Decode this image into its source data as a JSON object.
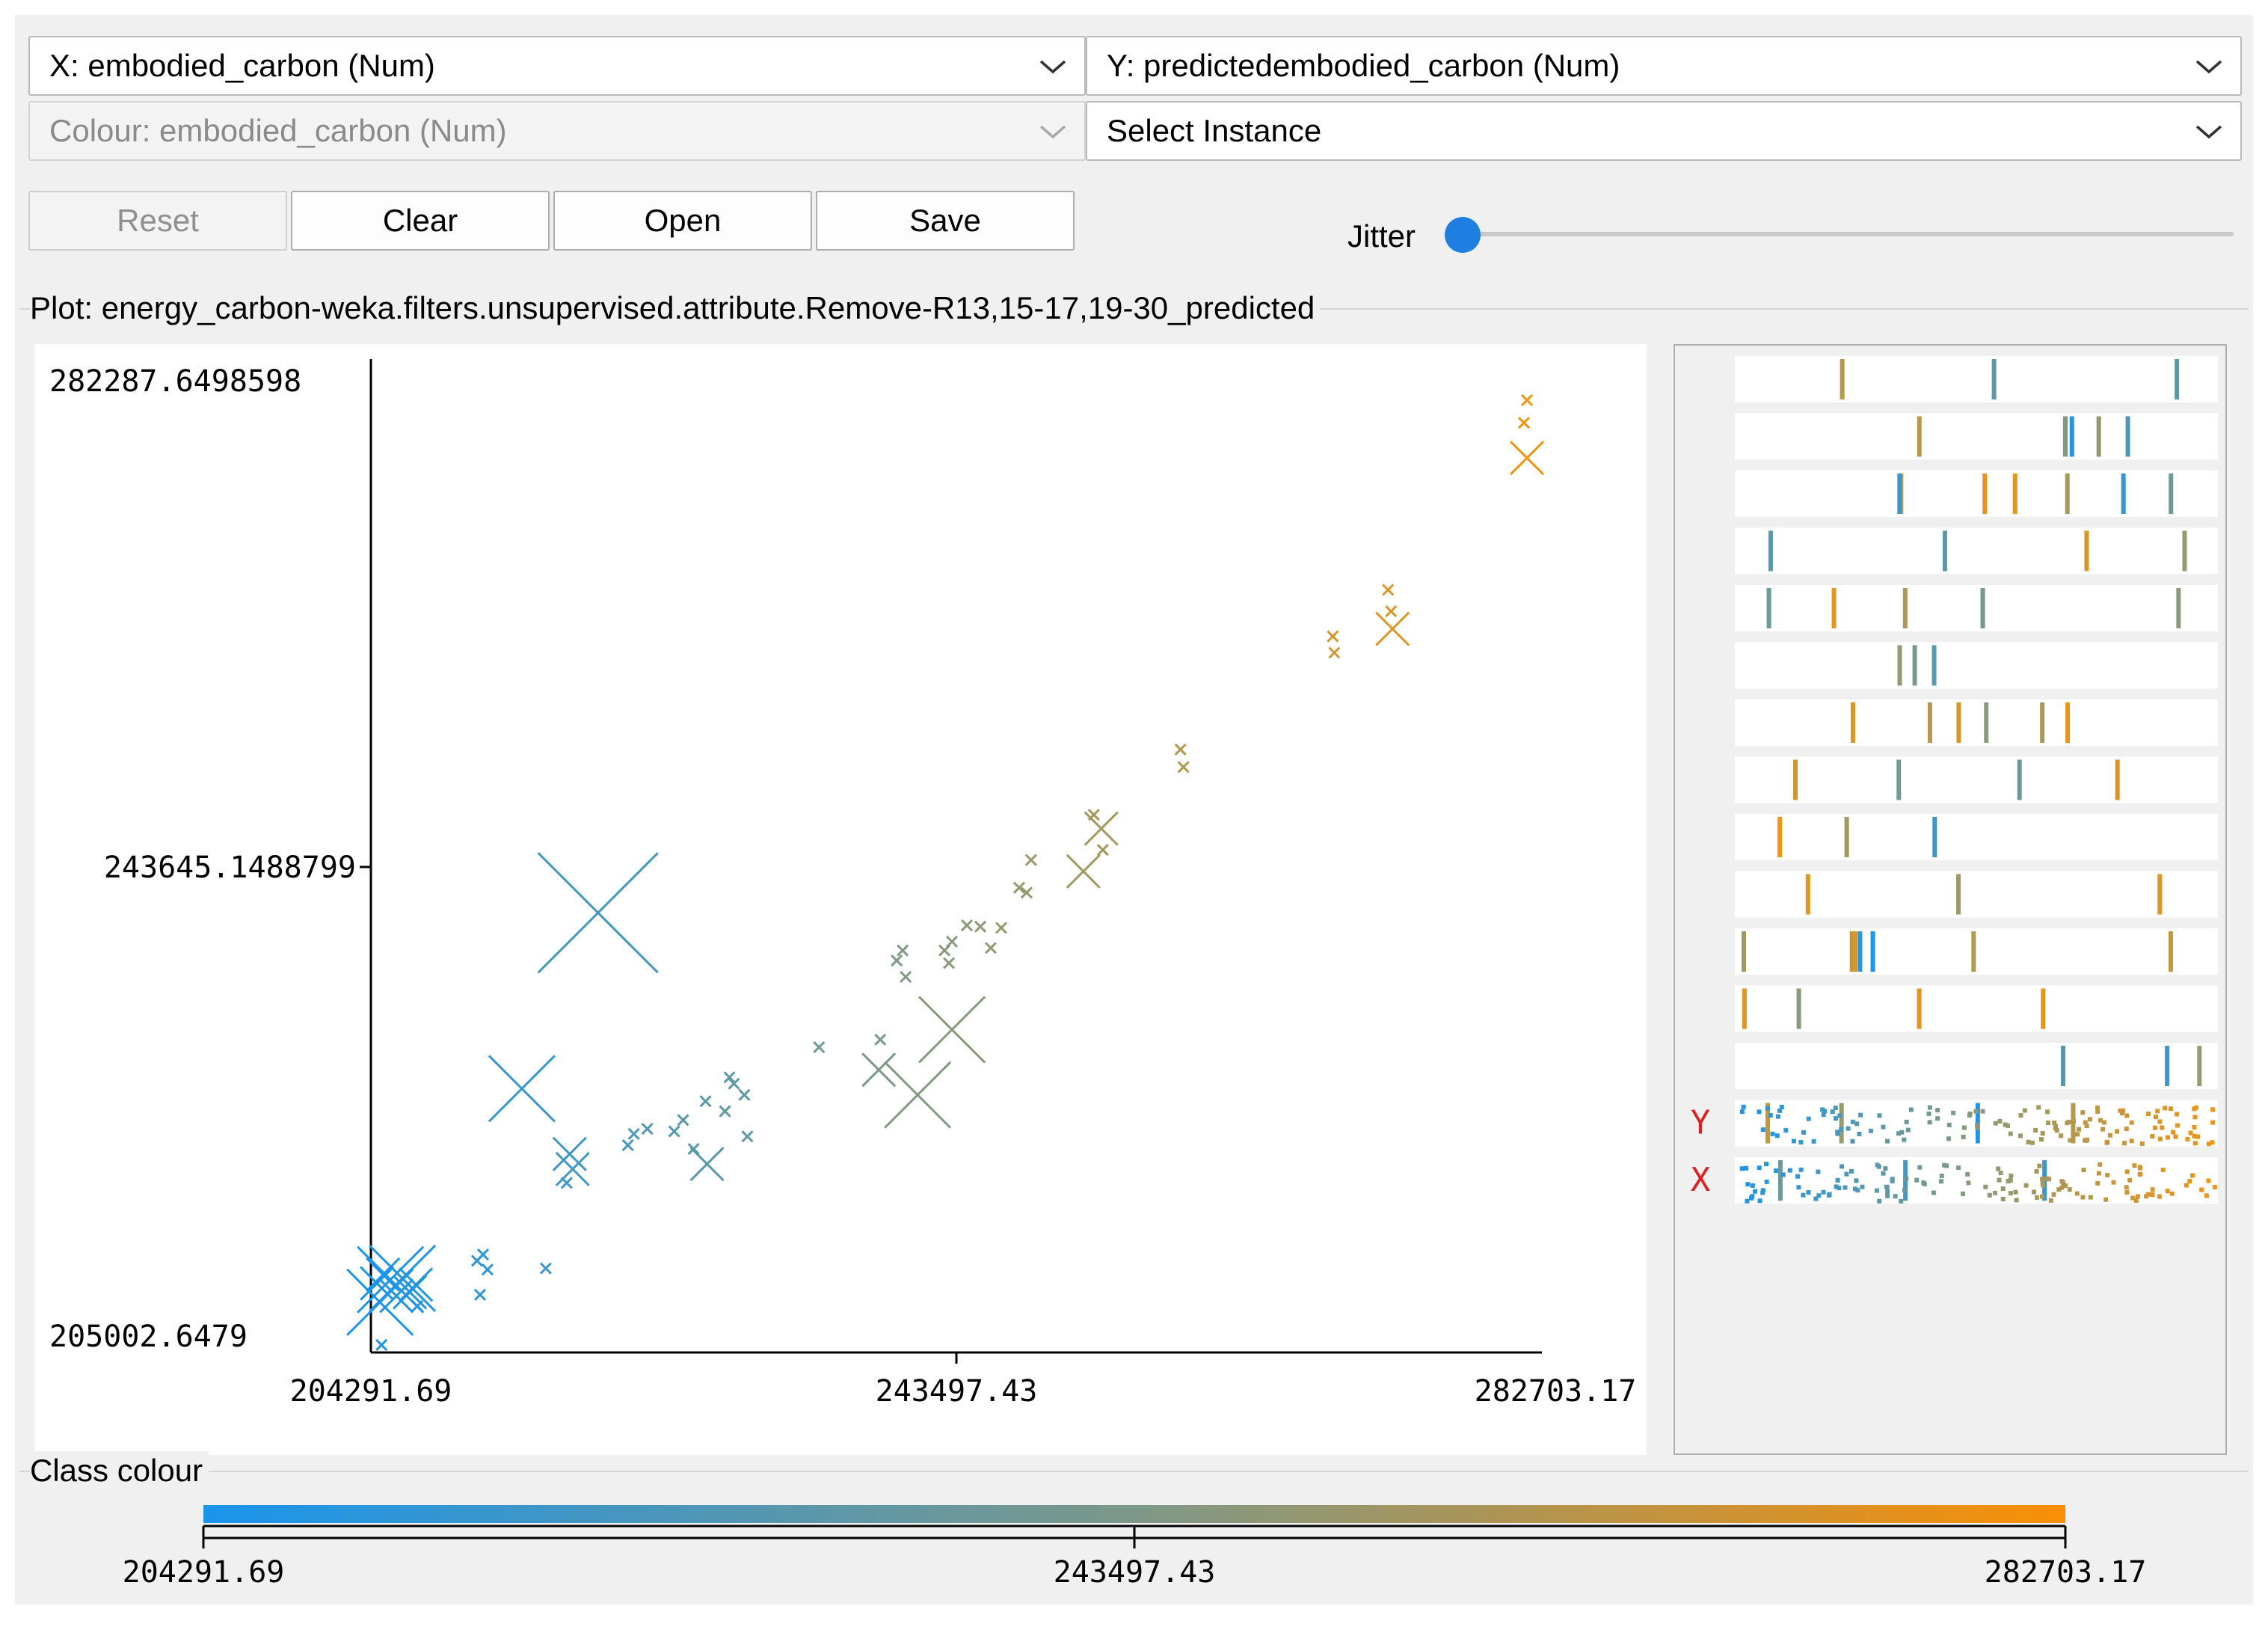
{
  "controls": {
    "x_select": "X: embodied_carbon (Num)",
    "y_select": "Y: predictedembodied_carbon (Num)",
    "colour_select": "Colour: embodied_carbon (Num)",
    "instance_select": "Select Instance",
    "reset_label": "Reset",
    "clear_label": "Clear",
    "open_label": "Open",
    "save_label": "Save",
    "jitter_label": "Jitter",
    "jitter_value": 0
  },
  "plot": {
    "title": "Plot: energy_carbon-weka.filters.unsupervised.attribute.Remove-R13,15-17,19-30_predicted"
  },
  "chart_data": {
    "type": "scatter",
    "x_label_top": "204291.69",
    "x_label_mid": "243497.43",
    "x_label_max": "282703.17",
    "y_label_max": "282287.6498598",
    "y_label_mid": "243645.1488799",
    "y_label_min": "205002.6479",
    "xlim": [
      204291.69,
      282703.17
    ],
    "ylim": [
      205002.6479,
      282287.6498598
    ],
    "marker": "cross",
    "colour_scale": [
      "#1a95ec",
      "#8a9a7a",
      "#f5940c"
    ],
    "points": [
      [
        204700,
        210500,
        2
      ],
      [
        204900,
        209000,
        3
      ],
      [
        205100,
        211200,
        2
      ],
      [
        205600,
        210800,
        3
      ],
      [
        206000,
        209500,
        2
      ],
      [
        206400,
        210900,
        3
      ],
      [
        206900,
        209800,
        2
      ],
      [
        207300,
        210400,
        2
      ],
      [
        207400,
        208700,
        1
      ],
      [
        205000,
        205600,
        1
      ],
      [
        211400,
        212300,
        1
      ],
      [
        211800,
        212800,
        1
      ],
      [
        212100,
        211600,
        1
      ],
      [
        211600,
        209600,
        1
      ],
      [
        216000,
        211700,
        1
      ],
      [
        214400,
        226000,
        3
      ],
      [
        219500,
        240000,
        4
      ],
      [
        217600,
        220800,
        2
      ],
      [
        217800,
        219600,
        2
      ],
      [
        217400,
        218500,
        1
      ],
      [
        221500,
        221500,
        1
      ],
      [
        221900,
        222400,
        1
      ],
      [
        222800,
        222800,
        1
      ],
      [
        224600,
        222600,
        1
      ],
      [
        225200,
        223500,
        1
      ],
      [
        225900,
        221200,
        1
      ],
      [
        226800,
        220000,
        2
      ],
      [
        228000,
        224200,
        1
      ],
      [
        228600,
        226400,
        1
      ],
      [
        226700,
        225000,
        1
      ],
      [
        228300,
        226900,
        1
      ],
      [
        229300,
        225500,
        1
      ],
      [
        229500,
        222200,
        1
      ],
      [
        234300,
        229300,
        1
      ],
      [
        238400,
        229900,
        1
      ],
      [
        238300,
        227500,
        2
      ],
      [
        240900,
        225500,
        3
      ],
      [
        243200,
        230700,
        3
      ],
      [
        239500,
        236200,
        1
      ],
      [
        239900,
        237000,
        1
      ],
      [
        240100,
        234900,
        1
      ],
      [
        242700,
        237000,
        1
      ],
      [
        243000,
        236000,
        1
      ],
      [
        243200,
        237700,
        1
      ],
      [
        244200,
        239000,
        1
      ],
      [
        245800,
        237200,
        1
      ],
      [
        245100,
        238900,
        1
      ],
      [
        246500,
        238800,
        1
      ],
      [
        247700,
        242000,
        1
      ],
      [
        248500,
        244200,
        1
      ],
      [
        248200,
        241600,
        1
      ],
      [
        252000,
        243300,
        2
      ],
      [
        253200,
        246700,
        2
      ],
      [
        253300,
        245000,
        1
      ],
      [
        252700,
        247800,
        1
      ],
      [
        258700,
        251600,
        1
      ],
      [
        258500,
        253000,
        1
      ],
      [
        268800,
        260700,
        1
      ],
      [
        268700,
        262000,
        1
      ],
      [
        272700,
        262600,
        2
      ],
      [
        272600,
        264000,
        1
      ],
      [
        272400,
        265700,
        1
      ],
      [
        281700,
        276200,
        2
      ],
      [
        281500,
        279000,
        1
      ],
      [
        281700,
        280800,
        1
      ]
    ],
    "matrix": {
      "rows": 15,
      "y_marker": "Y",
      "x_marker": "X"
    }
  },
  "legend": {
    "title": "Class colour",
    "min": "204291.69",
    "mid": "243497.43",
    "max": "282703.17"
  }
}
